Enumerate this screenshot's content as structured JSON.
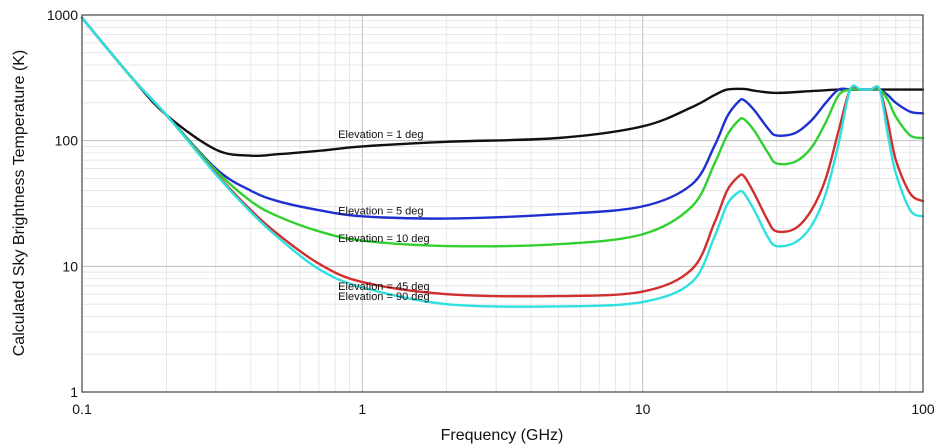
{
  "chart_data": {
    "type": "line",
    "title": "",
    "xlabel": "Frequency (GHz)",
    "ylabel": "Calculated Sky Brightness Temperature (K)",
    "x_scale": "log",
    "y_scale": "log",
    "xlim": [
      0.1,
      100
    ],
    "ylim": [
      1,
      1000
    ],
    "x_ticks": [
      0.1,
      1,
      10,
      100
    ],
    "x_tick_labels": [
      "0.1",
      "1",
      "10",
      "100"
    ],
    "y_ticks": [
      1,
      10,
      100,
      1000
    ],
    "y_tick_labels": [
      "1",
      "10",
      "100",
      "1000"
    ],
    "grid": true,
    "legend": "inline labels",
    "series": [
      {
        "name": "Elevation = 1 deg",
        "color": "#111111",
        "x": [
          0.1,
          0.15,
          0.2,
          0.3,
          0.4,
          0.5,
          0.7,
          1,
          2,
          5,
          10,
          15,
          18,
          20,
          23,
          25,
          30,
          40,
          50,
          60,
          70,
          80,
          100
        ],
        "y": [
          950,
          320,
          160,
          85,
          76,
          78,
          83,
          90,
          98,
          105,
          130,
          185,
          230,
          255,
          258,
          250,
          240,
          248,
          255,
          255,
          255,
          255,
          255
        ]
      },
      {
        "name": "Elevation = 5 deg",
        "color": "#1f2fd0",
        "x": [
          0.1,
          0.15,
          0.2,
          0.3,
          0.4,
          0.5,
          0.7,
          1,
          2,
          5,
          10,
          15,
          18,
          20,
          22,
          23,
          25,
          28,
          30,
          35,
          40,
          45,
          50,
          55,
          60,
          65,
          70,
          75,
          80,
          90,
          100
        ],
        "y": [
          950,
          320,
          160,
          60,
          40,
          33,
          28,
          25,
          24,
          26,
          30,
          45,
          90,
          155,
          205,
          210,
          175,
          125,
          110,
          115,
          145,
          200,
          255,
          255,
          255,
          255,
          255,
          230,
          200,
          170,
          165
        ]
      },
      {
        "name": "Elevation = 10 deg",
        "color": "#2fd02f",
        "x": [
          0.1,
          0.15,
          0.2,
          0.3,
          0.4,
          0.5,
          0.7,
          1,
          2,
          5,
          10,
          15,
          18,
          20,
          22,
          23,
          25,
          28,
          30,
          35,
          40,
          45,
          50,
          55,
          60,
          65,
          70,
          75,
          80,
          90,
          100
        ],
        "y": [
          950,
          320,
          160,
          58,
          33,
          25,
          19,
          16,
          14.5,
          15,
          18,
          30,
          65,
          110,
          145,
          148,
          120,
          80,
          66,
          68,
          88,
          140,
          230,
          255,
          255,
          255,
          255,
          210,
          155,
          110,
          105
        ]
      },
      {
        "name": "Elevation = 45 deg",
        "color": "#d02f2f",
        "x": [
          0.1,
          0.15,
          0.2,
          0.3,
          0.4,
          0.5,
          0.7,
          1,
          2,
          5,
          10,
          15,
          18,
          20,
          22,
          23,
          25,
          28,
          30,
          35,
          40,
          45,
          50,
          55,
          60,
          65,
          70,
          75,
          80,
          90,
          100
        ],
        "y": [
          950,
          320,
          160,
          55,
          28,
          18,
          10.5,
          7.5,
          6,
          5.8,
          6.3,
          9.5,
          22,
          40,
          52,
          52,
          38,
          23,
          19,
          20,
          28,
          50,
          120,
          255,
          255,
          255,
          255,
          140,
          70,
          38,
          33
        ]
      },
      {
        "name": "Elevation = 90 deg",
        "color": "#2fe0e0",
        "x": [
          0.1,
          0.15,
          0.2,
          0.3,
          0.4,
          0.5,
          0.7,
          1,
          2,
          5,
          10,
          15,
          18,
          20,
          22,
          23,
          25,
          28,
          30,
          35,
          40,
          45,
          50,
          55,
          60,
          65,
          70,
          75,
          80,
          90,
          100
        ],
        "y": [
          950,
          320,
          160,
          54,
          27,
          17,
          9.5,
          6.8,
          5,
          4.8,
          5.2,
          7.5,
          17,
          31,
          39,
          38,
          28,
          17,
          14.5,
          15.5,
          21,
          38,
          95,
          255,
          255,
          255,
          255,
          110,
          55,
          28,
          25
        ]
      }
    ]
  }
}
